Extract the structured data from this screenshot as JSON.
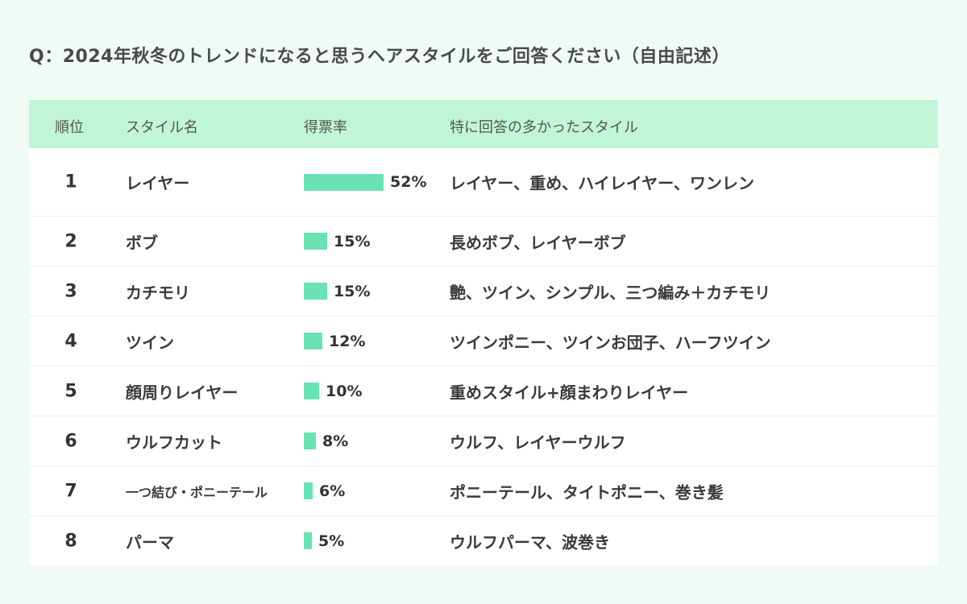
{
  "title": "Q：2024年秋冬のトレンドになると思うヘアスタイルをご回答ください（自由記述）",
  "headers": {
    "rank": "順位",
    "style": "スタイル名",
    "rate": "得票率",
    "popular": "特に回答の多かったスタイル"
  },
  "colors": {
    "background": "#f1fbf6",
    "header_bg": "#c0f5da",
    "bar": "#6ae3b4"
  },
  "chart_data": {
    "type": "table",
    "columns": [
      "順位",
      "スタイル名",
      "得票率",
      "特に回答の多かったスタイル"
    ],
    "rows": [
      {
        "rank": "1",
        "style": "レイヤー",
        "value": 52,
        "label": "52%",
        "popular": "レイヤー、重め、ハイレイヤー、ワンレン"
      },
      {
        "rank": "2",
        "style": "ボブ",
        "value": 15,
        "label": "15%",
        "popular": "長めボブ、レイヤーボブ"
      },
      {
        "rank": "3",
        "style": "カチモリ",
        "value": 15,
        "label": "15%",
        "popular": "艶、ツイン、シンプル、三つ編み＋カチモリ"
      },
      {
        "rank": "4",
        "style": "ツイン",
        "value": 12,
        "label": "12%",
        "popular": "ツインポニー、ツインお団子、ハーフツイン"
      },
      {
        "rank": "5",
        "style": "顔周りレイヤー",
        "value": 10,
        "label": "10%",
        "popular": "重めスタイル+顔まわりレイヤー"
      },
      {
        "rank": "6",
        "style": "ウルフカット",
        "value": 8,
        "label": "8%",
        "popular": "ウルフ、レイヤーウルフ"
      },
      {
        "rank": "7",
        "style": "一つ結び・ポニーテール",
        "value": 6,
        "label": "6%",
        "popular": "ポニーテール、タイトポニー、巻き髪"
      },
      {
        "rank": "8",
        "style": "パーマ",
        "value": 5,
        "label": "5%",
        "popular": "ウルフパーマ、波巻き"
      }
    ]
  }
}
